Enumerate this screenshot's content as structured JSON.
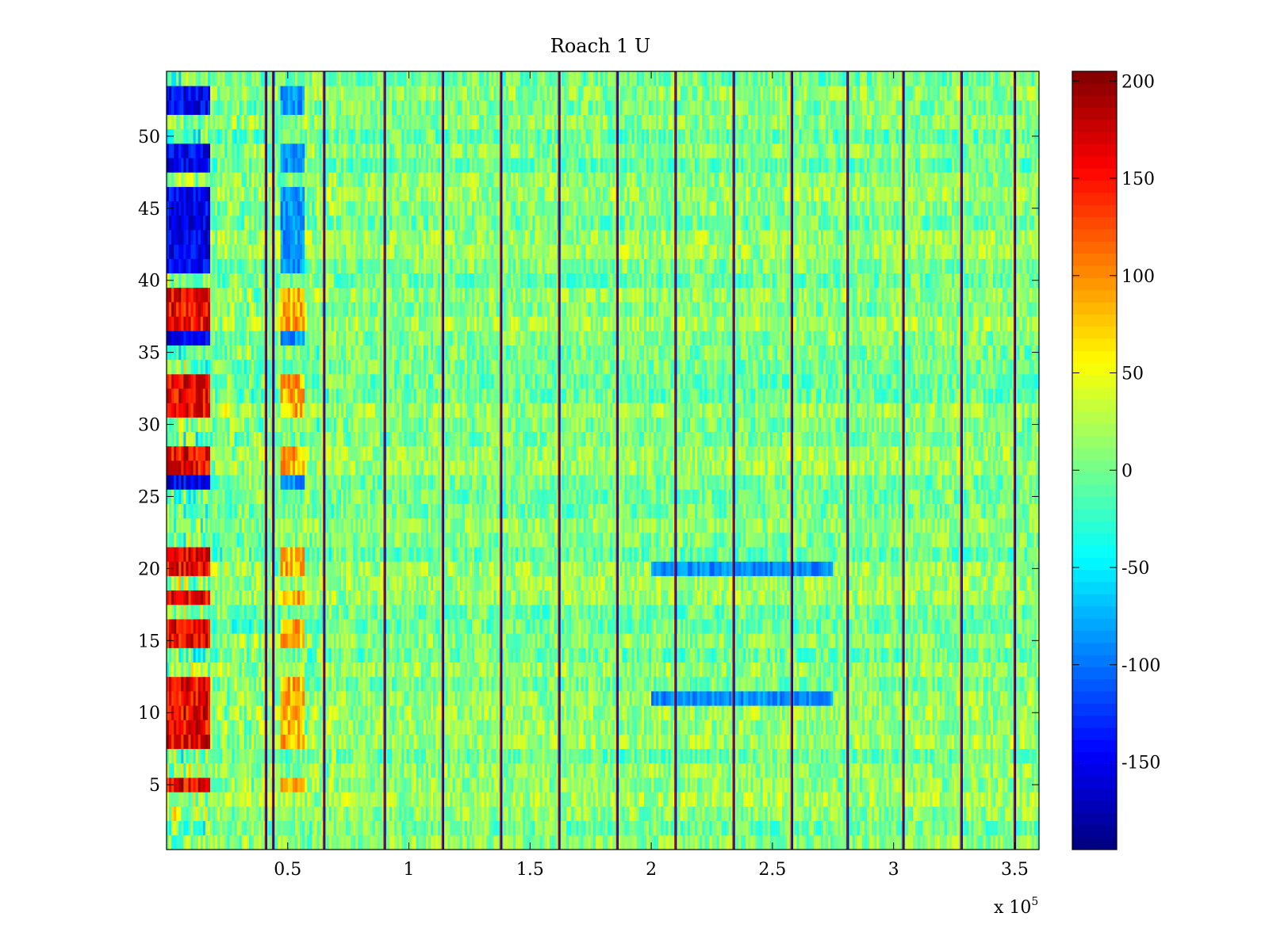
{
  "chart_data": {
    "type": "heatmap",
    "title": "Roach 1 U",
    "xlabel": "",
    "ylabel": "",
    "x_exponent_label": "x 10",
    "x_exponent_power": "5",
    "xlim": [
      0,
      3.6
    ],
    "ylim": [
      0.5,
      54.5
    ],
    "x_ticks": [
      0.5,
      1,
      1.5,
      2,
      2.5,
      3,
      3.5
    ],
    "x_tick_labels": [
      "0.5",
      "1",
      "1.5",
      "2",
      "2.5",
      "3",
      "3.5"
    ],
    "y_ticks": [
      5,
      10,
      15,
      20,
      25,
      30,
      35,
      40,
      45,
      50
    ],
    "y_tick_labels": [
      "5",
      "10",
      "15",
      "20",
      "25",
      "30",
      "35",
      "40",
      "45",
      "50"
    ],
    "rows": 54,
    "x_unit_scale": 100000,
    "colorbar": {
      "colormap": "jet",
      "clim": [
        -195,
        205
      ],
      "ticks": [
        200,
        150,
        100,
        50,
        0,
        -50,
        -100,
        -150
      ],
      "tick_labels": [
        "200",
        "150",
        "100",
        "50",
        "0",
        "-50",
        "-100",
        "-150"
      ]
    },
    "features": {
      "vertical_spike_lines_x": [
        0.41,
        0.44,
        0.65,
        0.9,
        1.14,
        1.38,
        1.62,
        1.86,
        2.1,
        2.34,
        2.58,
        2.81,
        3.04,
        3.28,
        3.5
      ],
      "early_region_strong_positive_rows": [
        5,
        8,
        9,
        10,
        11,
        12,
        15,
        16,
        18,
        20,
        21,
        27,
        28,
        31,
        32,
        33,
        37,
        38,
        39
      ],
      "early_region_strong_negative_rows": [
        26,
        36,
        41,
        42,
        43,
        44,
        45,
        46,
        48,
        49,
        52,
        53
      ],
      "early_region_x_extent": [
        0,
        0.18
      ],
      "second_band_x_extent": [
        0.47,
        0.57
      ],
      "negative_patch_rows_mid": [
        11,
        20
      ],
      "negative_patch_x_extent": [
        2.0,
        2.75
      ]
    }
  }
}
